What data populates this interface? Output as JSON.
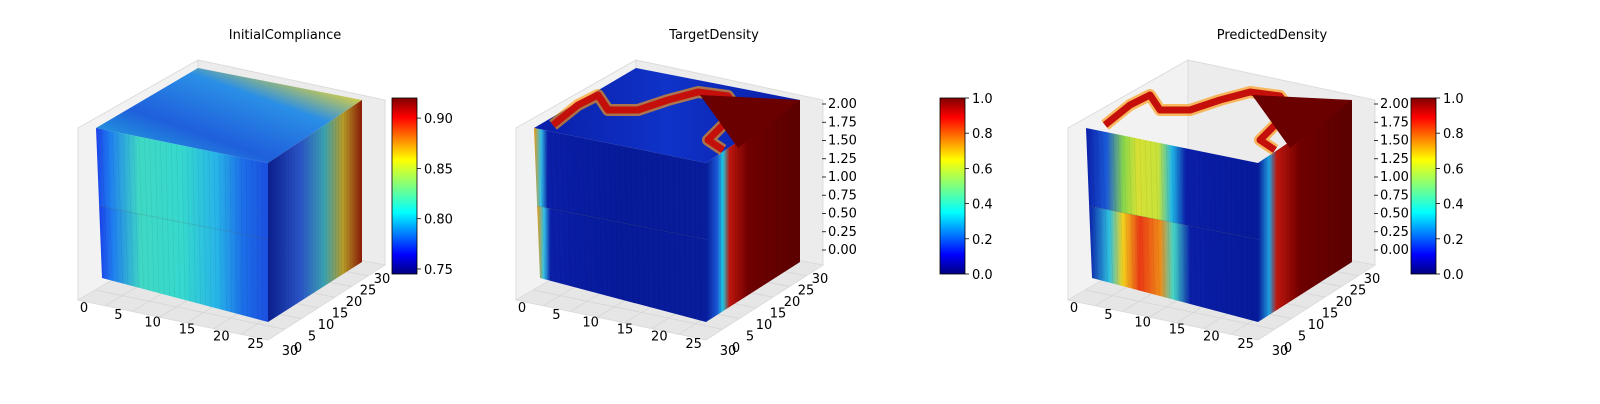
{
  "chart_data": [
    {
      "type": "heatmap",
      "title": "InitialCompliance",
      "x_ticks": [
        "0",
        "5",
        "10",
        "15",
        "20",
        "25",
        "30"
      ],
      "y_ticks": [
        "0",
        "5",
        "10",
        "15",
        "20",
        "25",
        "30"
      ],
      "colorbar": {
        "min": 0.745,
        "max": 0.92,
        "tick_labels": [
          "0.75",
          "0.80",
          "0.85",
          "0.90"
        ]
      },
      "colors": {
        "top_base": "#1f4fd6",
        "front_base": "#32d2c6",
        "side_base": "#1235a8"
      }
    },
    {
      "type": "heatmap",
      "title": "TargetDensity",
      "x_ticks": [
        "0",
        "5",
        "10",
        "15",
        "20",
        "25",
        "30"
      ],
      "y_ticks": [
        "0",
        "5",
        "10",
        "15",
        "20",
        "25",
        "30"
      ],
      "z_ticks": [
        "0.00",
        "0.25",
        "0.50",
        "0.75",
        "1.00",
        "1.25",
        "1.50",
        "1.75",
        "2.00"
      ],
      "colorbar": {
        "min": 0.0,
        "max": 1.0,
        "tick_labels": [
          "0.0",
          "0.2",
          "0.4",
          "0.6",
          "0.8",
          "1.0"
        ]
      },
      "colors": {
        "top_base": "#00158c",
        "front_base": "#000f7a",
        "side_base": "#5a0000"
      }
    },
    {
      "type": "heatmap",
      "title": "PredictedDensity",
      "x_ticks": [
        "0",
        "5",
        "10",
        "15",
        "20",
        "25",
        "30"
      ],
      "y_ticks": [
        "0",
        "5",
        "10",
        "15",
        "20",
        "25",
        "30"
      ],
      "z_ticks": [
        "0.00",
        "0.25",
        "0.50",
        "0.75",
        "1.00",
        "1.25",
        "1.50",
        "1.75",
        "2.00"
      ],
      "colorbar": {
        "min": 0.0,
        "max": 1.0,
        "tick_labels": [
          "0.0",
          "0.2",
          "0.4",
          "0.6",
          "0.8",
          "1.0"
        ]
      },
      "colors": {
        "top_base": "#00158c",
        "front_base": "#000f7a",
        "side_base": "#5a0000"
      }
    }
  ]
}
